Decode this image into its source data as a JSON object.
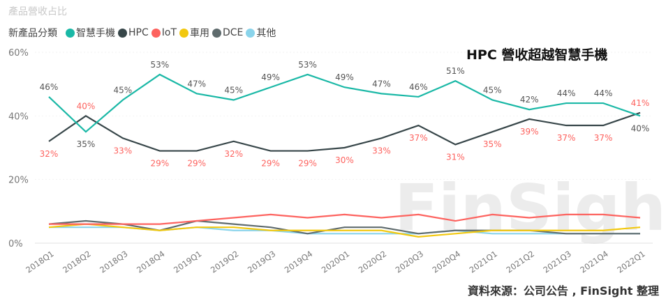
{
  "title": "產品營收占比",
  "headline": "HPC 營收超越智慧手機",
  "source": "資料來源：公司公告 , FinSight 整理",
  "watermark": "FinSight",
  "legend": {
    "label": "新產品分類"
  },
  "chart_data": {
    "type": "line",
    "title": "產品營收占比",
    "ylim": [
      0,
      60
    ],
    "yticks": [
      "0%",
      "20%",
      "40%",
      "60%"
    ],
    "ytick_values": [
      0,
      20,
      40,
      60
    ],
    "categories": [
      "2018Q1",
      "2018Q2",
      "2018Q3",
      "2018Q4",
      "2019Q1",
      "2019Q2",
      "2019Q3",
      "2019Q4",
      "2020Q1",
      "2020Q2",
      "2020Q3",
      "2020Q4",
      "2021Q1",
      "2021Q2",
      "2021Q3",
      "2021Q4",
      "2022Q1"
    ],
    "legend_position": "top-left",
    "series": [
      {
        "name": "智慧手機",
        "color": "#1ab8a6",
        "labeled": true,
        "label_color": "#555555",
        "values": [
          46,
          35,
          45,
          53,
          47,
          45,
          49,
          53,
          49,
          47,
          46,
          51,
          45,
          42,
          44,
          44,
          40
        ]
      },
      {
        "name": "HPC",
        "color": "#374649",
        "labeled": true,
        "label_color": "#fd625e",
        "values": [
          32,
          40,
          33,
          29,
          29,
          32,
          29,
          29,
          30,
          33,
          37,
          31,
          35,
          39,
          37,
          37,
          41
        ]
      },
      {
        "name": "IoT",
        "color": "#fd625e",
        "values": [
          6,
          6,
          6,
          6,
          7,
          8,
          9,
          8,
          9,
          8,
          9,
          7,
          9,
          8,
          9,
          9,
          8
        ]
      },
      {
        "name": "車用",
        "color": "#f2c80f",
        "values": [
          5,
          6,
          5,
          4,
          5,
          5,
          4,
          4,
          4,
          4,
          2,
          3,
          4,
          4,
          4,
          4,
          5
        ]
      },
      {
        "name": "DCE",
        "color": "#5f6b6d",
        "values": [
          6,
          7,
          6,
          4,
          7,
          6,
          5,
          3,
          5,
          5,
          3,
          4,
          4,
          4,
          3,
          3,
          3
        ]
      },
      {
        "name": "其他",
        "color": "#8ad4eb",
        "values": [
          5,
          5,
          5,
          4,
          5,
          4,
          4,
          3,
          3,
          3,
          3,
          4,
          3,
          3,
          3,
          3,
          3
        ]
      }
    ]
  }
}
